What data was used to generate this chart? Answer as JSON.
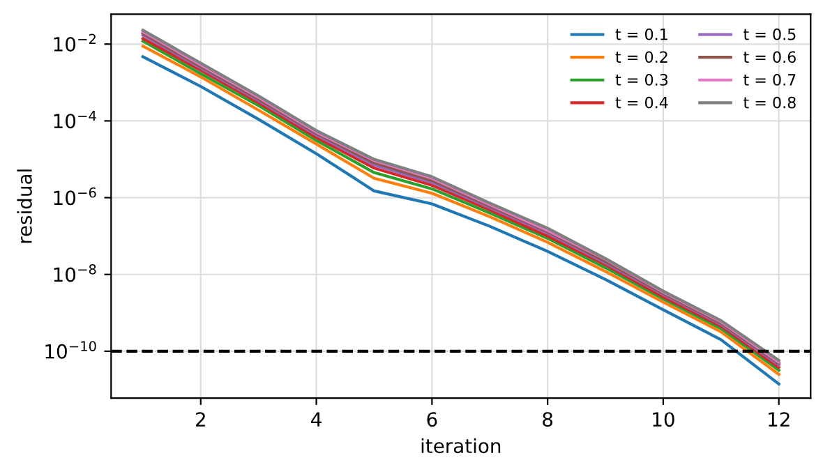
{
  "chart_data": {
    "type": "line",
    "xlabel": "iteration",
    "ylabel": "residual",
    "x": [
      1,
      2,
      3,
      4,
      5,
      6,
      7,
      8,
      9,
      10,
      11,
      12
    ],
    "series": [
      {
        "name": "t = 0.1",
        "color": "#1f77b4",
        "values": [
          0.0047,
          0.00079,
          0.00011,
          1.4e-05,
          1.5e-06,
          6.9e-07,
          1.8e-07,
          4e-08,
          7.4e-09,
          1.2e-09,
          2e-10,
          1.4e-11
        ]
      },
      {
        "name": "t = 0.2",
        "color": "#ff7f0e",
        "values": [
          0.0089,
          0.0014,
          0.00019,
          2.5e-05,
          3.2e-06,
          1.3e-06,
          3.2e-07,
          6.9e-08,
          1.2e-08,
          1.9e-09,
          3.2e-10,
          2.5e-11
        ]
      },
      {
        "name": "t = 0.3",
        "color": "#2ca02c",
        "values": [
          0.012,
          0.0017,
          0.00025,
          3.1e-05,
          4.5e-06,
          1.7e-06,
          4e-07,
          8.7e-08,
          1.5e-08,
          2.3e-09,
          3.9e-10,
          3.2e-11
        ]
      },
      {
        "name": "t = 0.4",
        "color": "#d62728",
        "values": [
          0.014,
          0.0021,
          0.0003,
          3.7e-05,
          5.9e-06,
          2.1e-06,
          4.8e-07,
          1e-07,
          1.8e-08,
          2.6e-09,
          4.5e-10,
          3.8e-11
        ]
      },
      {
        "name": "t = 0.5",
        "color": "#9467bd",
        "values": [
          0.017,
          0.0024,
          0.00034,
          4.3e-05,
          7.1e-06,
          2.5e-06,
          5.5e-07,
          1.2e-07,
          2e-08,
          3e-09,
          5e-10,
          4.4e-11
        ]
      },
      {
        "name": "t = 0.6",
        "color": "#8c564b",
        "values": [
          0.019,
          0.0026,
          0.00037,
          4.7e-05,
          8.1e-06,
          2.8e-06,
          6e-07,
          1.3e-07,
          2.2e-08,
          3.2e-09,
          5.4e-10,
          4.8e-11
        ]
      },
      {
        "name": "t = 0.7",
        "color": "#e377c2",
        "values": [
          0.021,
          0.0029,
          0.00041,
          5.1e-05,
          9.3e-06,
          3.2e-06,
          6.6e-07,
          1.4e-07,
          2.5e-08,
          3.5e-09,
          5.9e-10,
          5.2e-11
        ]
      },
      {
        "name": "t = 0.8",
        "color": "#7f7f7f",
        "values": [
          0.023,
          0.0032,
          0.00045,
          5.6e-05,
          1e-05,
          3.5e-06,
          7.2e-07,
          1.6e-07,
          2.6e-08,
          3.7e-09,
          6.3e-10,
          5.8e-11
        ]
      }
    ],
    "log": "y",
    "xlim": [
      0.45,
      12.55
    ],
    "xticks": [
      2,
      4,
      6,
      8,
      10,
      12
    ],
    "ylim": [
      6e-12,
      0.06
    ],
    "yticks": [
      {
        "value": 1e-10,
        "label": "10$^{−10}$"
      },
      {
        "value": 1e-08,
        "label": "10$^{−8}$"
      },
      {
        "value": 1e-06,
        "label": "10$^{−6}$"
      },
      {
        "value": 0.0001,
        "label": "10$^{−4}$"
      },
      {
        "value": 0.01,
        "label": "10$^{−2}$"
      }
    ],
    "ref_lines": [
      {
        "axis": "y",
        "value": 1e-10,
        "color": "#000000",
        "line_style": "dashed"
      }
    ],
    "grid": true,
    "legend": "top right",
    "line_style": "solid",
    "marker": "none"
  }
}
